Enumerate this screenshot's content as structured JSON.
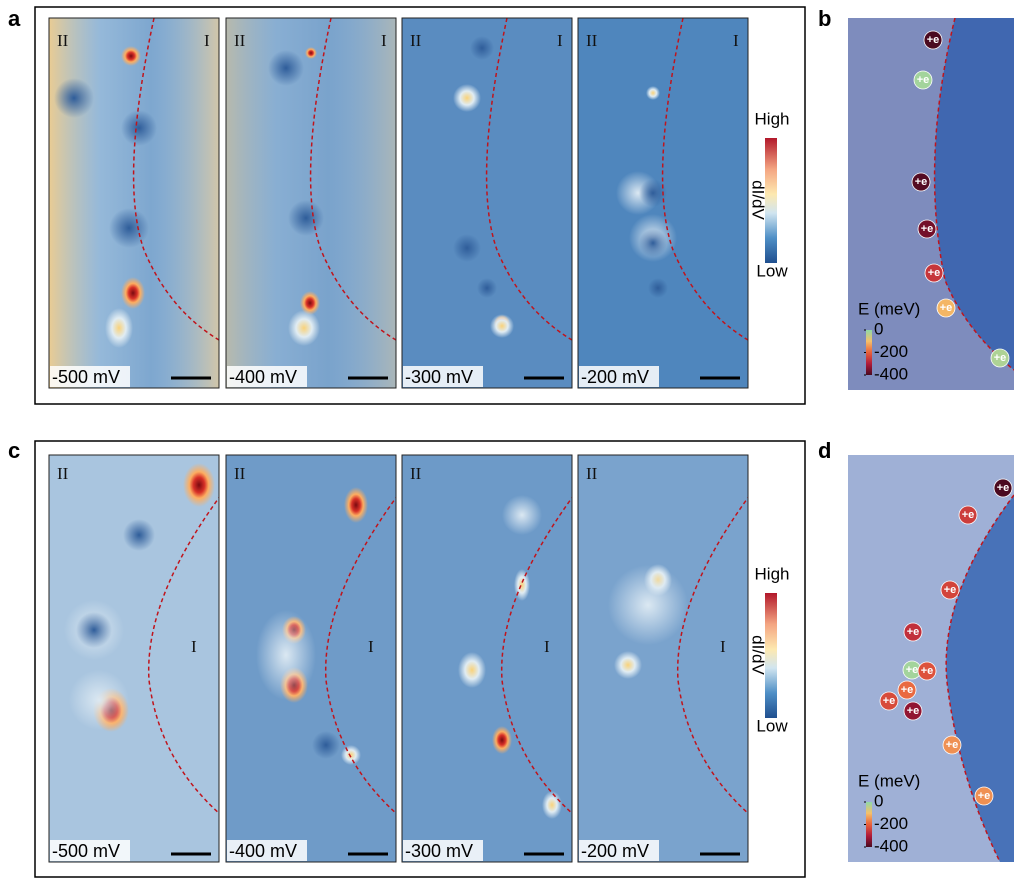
{
  "panel_a": {
    "label": "a",
    "images": [
      {
        "region_left": "II",
        "region_right": "I",
        "bias": "-500 mV"
      },
      {
        "region_left": "II",
        "region_right": "I",
        "bias": "-400 mV"
      },
      {
        "region_left": "II",
        "region_right": "I",
        "bias": "-300 mV"
      },
      {
        "region_left": "II",
        "region_right": "I",
        "bias": "-200 mV"
      }
    ],
    "colorbar": {
      "high": "High",
      "low": "Low",
      "quantity": "dI/dV"
    }
  },
  "panel_b": {
    "label": "b",
    "markers": [
      {
        "label": "+e",
        "energy": -400
      },
      {
        "label": "+e",
        "energy": -20
      },
      {
        "label": "+e",
        "energy": -390
      },
      {
        "label": "+e",
        "energy": -360
      },
      {
        "label": "+e",
        "energy": -260
      },
      {
        "label": "+e",
        "energy": -110
      },
      {
        "label": "+e",
        "energy": -30
      }
    ],
    "colorbar": {
      "title": "E (meV)",
      "ticks": [
        0,
        -200,
        -400
      ]
    }
  },
  "panel_c": {
    "label": "c",
    "images": [
      {
        "region_left": "II",
        "region_center": "I",
        "bias": "-500 mV"
      },
      {
        "region_left": "II",
        "region_center": "I",
        "bias": "-400 mV"
      },
      {
        "region_left": "II",
        "region_center": "I",
        "bias": "-300 mV"
      },
      {
        "region_left": "II",
        "region_center": "I",
        "bias": "-200 mV"
      }
    ],
    "colorbar": {
      "high": "High",
      "low": "Low",
      "quantity": "dI/dV"
    }
  },
  "panel_d": {
    "label": "d",
    "markers": [
      {
        "label": "+e",
        "energy": -400
      },
      {
        "label": "+e",
        "energy": -250
      },
      {
        "label": "+e",
        "energy": -240
      },
      {
        "label": "+e",
        "energy": -270
      },
      {
        "label": "+e",
        "energy": -20
      },
      {
        "label": "+e",
        "energy": -220
      },
      {
        "label": "+e",
        "energy": -190
      },
      {
        "label": "+e",
        "energy": -230
      },
      {
        "label": "+e",
        "energy": -330
      },
      {
        "label": "+e",
        "energy": -150
      },
      {
        "label": "+e",
        "energy": -150
      }
    ],
    "colorbar": {
      "title": "E (meV)",
      "ticks": [
        0,
        -200,
        -400
      ]
    }
  }
}
